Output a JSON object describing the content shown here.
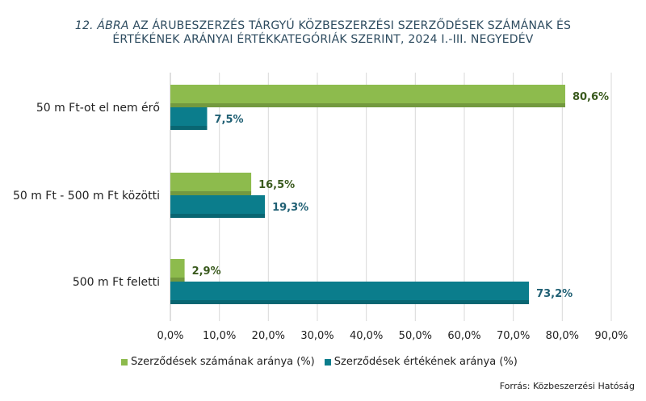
{
  "title": {
    "number": "12. ÁBRA",
    "line1_rest": "AZ ÁRUBESZERZÉS TÁRGYÚ KÖZBESZERZÉSI SZERZŐDÉSEK SZÁMÁNAK ÉS",
    "line2": "ÉRTÉKÉNEK ARÁNYAI ÉRTÉKKATEGÓRIÁK SZERINT, 2024 I.-III. NEGYEDÉV"
  },
  "colors": {
    "green": "#8dbb4d",
    "teal": "#0b7d8c",
    "green_label": "#3a5a1e",
    "teal_label": "#1f5f73"
  },
  "source": "Forrás: Közbeszerzési Hatóság",
  "chart_data": {
    "type": "bar",
    "orientation": "horizontal",
    "categories": [
      "50 m Ft-ot el nem érő",
      "50 m Ft - 500 m Ft közötti",
      "500 m Ft feletti"
    ],
    "series": [
      {
        "name": "Szerződések számának aránya (%)",
        "values": [
          80.6,
          16.5,
          2.9
        ],
        "labels": [
          "80,6%",
          "16,5%",
          "2,9%"
        ]
      },
      {
        "name": "Szerződések értékének aránya (%)",
        "values": [
          7.5,
          19.3,
          73.2
        ],
        "labels": [
          "7,5%",
          "19,3%",
          "73,2%"
        ]
      }
    ],
    "xlim": [
      0,
      90
    ],
    "xticks": [
      0,
      10,
      20,
      30,
      40,
      50,
      60,
      70,
      80,
      90
    ],
    "xtick_labels": [
      "0,0%",
      "10,0%",
      "20,0%",
      "30,0%",
      "40,0%",
      "50,0%",
      "60,0%",
      "70,0%",
      "80,0%",
      "90,0%"
    ],
    "grid": true,
    "legend": "bottom"
  }
}
